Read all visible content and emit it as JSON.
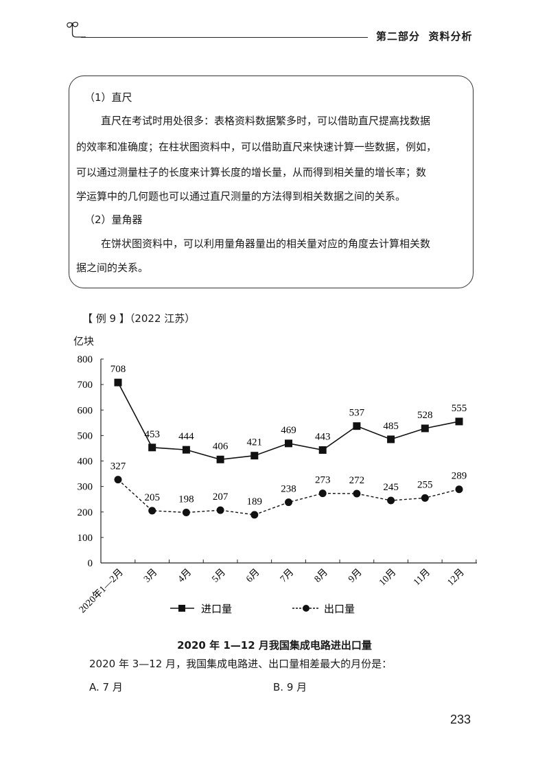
{
  "header": {
    "section_title": "第二部分  资料分析",
    "icon": "sprout-icon"
  },
  "tip_box": {
    "item1_heading": "（1）直尺",
    "item1_lines": [
      "直尺在考试时用处很多：表格资料数据繁多时，可以借助直尺提高找数据",
      "的效率和准确度；在柱状图资料中，可以借助直尺来快速计算一些数据，例如，",
      "可以通过测量柱子的长度来计算长度的增长量，从而得到相关量的增长率；数",
      "学运算中的几何题也可以通过直尺测量的方法得到相关数据之间的关系。"
    ],
    "item2_heading": "（2）量角器",
    "item2_lines": [
      "在饼状图资料中，可以利用量角器量出的相关量对应的角度去计算相关数",
      "据之间的关系。"
    ]
  },
  "example": {
    "label": "【 例 9 】（2022 江苏）"
  },
  "chart_data": {
    "type": "line",
    "title": "2020 年 1—12 月我国集成电路进出口量",
    "ylabel": "亿块",
    "xlabel": "",
    "ylim": [
      0,
      800
    ],
    "yticks": [
      0,
      100,
      200,
      300,
      400,
      500,
      600,
      700,
      800
    ],
    "grid": false,
    "legend_position": "bottom",
    "categories": [
      "2020年1—2月",
      "3月",
      "4月",
      "5月",
      "6月",
      "7月",
      "8月",
      "9月",
      "10月",
      "11月",
      "12月"
    ],
    "series": [
      {
        "name": "进口量",
        "style": "solid",
        "marker": "square",
        "values": [
          708,
          453,
          444,
          406,
          421,
          469,
          443,
          537,
          485,
          528,
          555
        ]
      },
      {
        "name": "出口量",
        "style": "dashed",
        "marker": "circle",
        "values": [
          327,
          205,
          198,
          207,
          189,
          238,
          273,
          272,
          245,
          255,
          289
        ]
      }
    ]
  },
  "question": {
    "text": "2020 年 3—12 月，我国集成电路进、出口量相差最大的月份是：",
    "options": [
      {
        "key": "A",
        "label": "A. 7 月"
      },
      {
        "key": "B",
        "label": "B. 9 月"
      }
    ]
  },
  "page_number": "233"
}
